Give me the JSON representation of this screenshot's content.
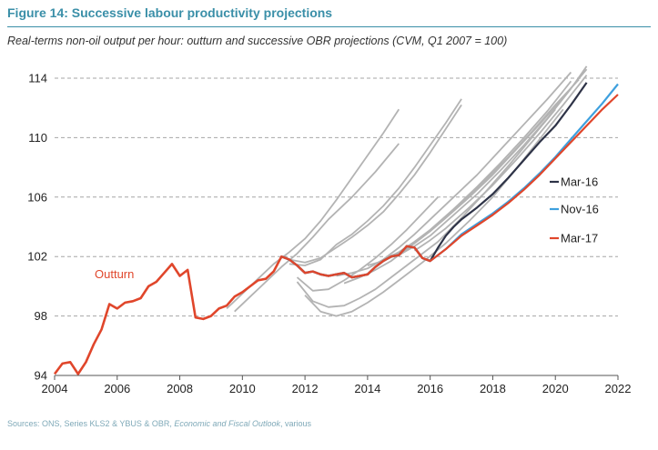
{
  "figure": {
    "title": "Figure 14:  Successive labour productivity projections",
    "subtitle": "Real-terms non-oil output per hour: outturn and successive OBR projections (CVM, Q1 2007 = 100)",
    "source_prefix": "Sources: ",
    "source_text": "ONS, Series KLS2 & YBUS & OBR, ",
    "source_italic": "Economic and Fiscal Outlook",
    "source_suffix": ", various"
  },
  "chart_data": {
    "type": "line",
    "title": "Successive labour productivity projections",
    "xlabel": "",
    "ylabel": "",
    "xlim": [
      2004,
      2022
    ],
    "ylim": [
      94,
      115
    ],
    "xticks": [
      "2004",
      "2006",
      "2008",
      "2010",
      "2012",
      "2014",
      "2016",
      "2018",
      "2020",
      "2022"
    ],
    "yticks": [
      "94",
      "98",
      "102",
      "106",
      "110",
      "114"
    ],
    "grid": "horizontal-dashed",
    "legend_position": "right",
    "colors": {
      "outturn": "#e0462b",
      "mar16": "#2e3347",
      "nov16": "#3ea0de",
      "mar17": "#e0462b",
      "past": "#b3b3b3"
    },
    "outturn_label": "Outturn",
    "outturn": {
      "x": [
        2004.0,
        2004.25,
        2004.5,
        2004.75,
        2005.0,
        2005.25,
        2005.5,
        2005.75,
        2006.0,
        2006.25,
        2006.5,
        2006.75,
        2007.0,
        2007.25,
        2007.5,
        2007.75,
        2008.0,
        2008.25,
        2008.5,
        2008.75,
        2009.0,
        2009.25,
        2009.5,
        2009.75,
        2010.0,
        2010.25,
        2010.5,
        2010.75,
        2011.0,
        2011.25,
        2011.5,
        2011.75,
        2012.0,
        2012.25,
        2012.5,
        2012.75,
        2013.0,
        2013.25,
        2013.5,
        2013.75,
        2014.0,
        2014.25,
        2014.5,
        2014.75,
        2015.0,
        2015.25,
        2015.5,
        2015.75,
        2016.0
      ],
      "y": [
        94.1,
        94.8,
        94.9,
        94.1,
        94.9,
        96.1,
        97.1,
        98.8,
        98.5,
        98.9,
        99.0,
        99.2,
        100.0,
        100.3,
        100.9,
        101.5,
        100.7,
        101.1,
        97.9,
        97.8,
        98.0,
        98.5,
        98.7,
        99.3,
        99.6,
        100.0,
        100.4,
        100.5,
        101.0,
        102.0,
        101.8,
        101.4,
        100.9,
        101.0,
        100.8,
        100.7,
        100.8,
        100.9,
        100.6,
        100.7,
        100.8,
        101.3,
        101.7,
        102.0,
        102.1,
        102.7,
        102.6,
        101.9,
        101.7
      ]
    },
    "series": [
      {
        "name": "Mar-16",
        "x": [
          2016.0,
          2016.25,
          2016.5,
          2016.75,
          2017.0,
          2017.5,
          2018.0,
          2018.5,
          2019.0,
          2019.5,
          2020.0,
          2020.5,
          2021.0
        ],
        "y": [
          101.6,
          102.6,
          103.4,
          104.0,
          104.5,
          105.3,
          106.2,
          107.3,
          108.5,
          109.7,
          110.8,
          112.2,
          113.7
        ]
      },
      {
        "name": "Nov-16",
        "x": [
          2016.0,
          2016.5,
          2017.0,
          2017.5,
          2018.0,
          2018.5,
          2019.0,
          2019.5,
          2020.0,
          2020.5,
          2021.0,
          2021.5,
          2022.0
        ],
        "y": [
          101.7,
          102.5,
          103.5,
          104.2,
          104.9,
          105.7,
          106.6,
          107.6,
          108.7,
          109.9,
          111.1,
          112.3,
          113.6
        ]
      },
      {
        "name": "Mar-17",
        "x": [
          2016.0,
          2016.5,
          2017.0,
          2017.5,
          2018.0,
          2018.5,
          2019.0,
          2019.5,
          2020.0,
          2020.5,
          2021.0,
          2021.5,
          2022.0
        ],
        "y": [
          101.7,
          102.5,
          103.4,
          104.1,
          104.8,
          105.6,
          106.5,
          107.5,
          108.6,
          109.7,
          110.8,
          111.9,
          112.9
        ]
      }
    ],
    "past_projections": [
      {
        "x": [
          2009.5,
          2010.0,
          2010.5,
          2011.0,
          2011.5,
          2012.0,
          2012.5,
          2013.0,
          2013.5,
          2014.0,
          2014.5,
          2015.0
        ],
        "y": [
          98.5,
          99.5,
          100.5,
          101.5,
          102.3,
          103.2,
          104.4,
          105.8,
          107.3,
          108.8,
          110.3,
          111.9
        ]
      },
      {
        "x": [
          2009.75,
          2010.25,
          2010.75,
          2011.25,
          2011.75,
          2012.25,
          2012.75,
          2013.5,
          2014.25,
          2015.0
        ],
        "y": [
          98.3,
          99.3,
          100.3,
          101.3,
          102.2,
          103.3,
          104.5,
          106.0,
          107.7,
          109.6
        ]
      },
      {
        "x": [
          2011.5,
          2012.0,
          2012.5,
          2013.0,
          2013.5,
          2014.0,
          2014.5,
          2015.0,
          2015.5,
          2016.0,
          2016.5,
          2017.0
        ],
        "y": [
          101.5,
          101.4,
          101.8,
          102.8,
          103.5,
          104.4,
          105.4,
          106.6,
          108.0,
          109.5,
          111.0,
          112.6
        ]
      },
      {
        "x": [
          2011.5,
          2012.0,
          2012.5,
          2013.0,
          2013.5,
          2014.0,
          2014.5,
          2015.0,
          2015.5,
          2016.0,
          2016.5,
          2017.0
        ],
        "y": [
          101.8,
          101.6,
          101.9,
          102.6,
          103.3,
          104.1,
          105.0,
          106.2,
          107.5,
          109.0,
          110.6,
          112.2
        ]
      },
      {
        "x": [
          2011.75,
          2012.25,
          2012.75,
          2013.25,
          2013.75,
          2014.25,
          2014.75,
          2015.25,
          2015.75,
          2016.25
        ],
        "y": [
          100.6,
          99.7,
          99.8,
          100.4,
          101.1,
          101.9,
          102.8,
          103.8,
          104.9,
          106.0
        ]
      },
      {
        "x": [
          2011.75,
          2012.25,
          2012.75,
          2013.25,
          2013.75,
          2014.25,
          2014.75,
          2015.5,
          2016.25,
          2017.0,
          2017.75,
          2018.5,
          2019.25,
          2020.0
        ],
        "y": [
          100.3,
          99.0,
          98.6,
          98.7,
          99.2,
          99.8,
          100.6,
          101.8,
          103.0,
          104.6,
          106.3,
          108.1,
          110.0,
          111.9
        ]
      },
      {
        "x": [
          2012.0,
          2012.5,
          2013.0,
          2013.5,
          2014.0,
          2014.5,
          2015.0,
          2015.75,
          2016.5,
          2017.25,
          2018.0,
          2018.75,
          2019.5,
          2020.25
        ],
        "y": [
          99.4,
          98.3,
          98.0,
          98.3,
          98.9,
          99.6,
          100.4,
          101.6,
          102.9,
          104.4,
          106.0,
          107.9,
          109.9,
          111.9
        ]
      },
      {
        "x": [
          2013.0,
          2013.5,
          2014.0,
          2014.5,
          2015.0,
          2015.5,
          2016.0,
          2016.75,
          2017.5,
          2018.25,
          2019.0,
          2019.75,
          2020.5
        ],
        "y": [
          100.7,
          100.9,
          101.2,
          101.8,
          102.6,
          103.5,
          104.5,
          106.0,
          107.5,
          109.2,
          110.9,
          112.6,
          114.4
        ]
      },
      {
        "x": [
          2013.25,
          2013.75,
          2014.25,
          2014.75,
          2015.25,
          2015.75,
          2016.25,
          2017.0,
          2017.75,
          2018.5,
          2019.25,
          2020.0,
          2020.75
        ],
        "y": [
          100.2,
          100.6,
          101.1,
          101.7,
          102.5,
          103.3,
          104.2,
          105.6,
          107.1,
          108.7,
          110.4,
          112.2,
          113.9
        ]
      },
      {
        "x": [
          2014.0,
          2014.5,
          2015.0,
          2015.5,
          2016.0,
          2016.5,
          2017.25,
          2018.0,
          2018.75,
          2019.5,
          2020.25,
          2021.0
        ],
        "y": [
          101.4,
          101.7,
          102.2,
          102.9,
          103.7,
          104.6,
          106.0,
          107.5,
          109.2,
          110.9,
          112.7,
          114.6
        ]
      },
      {
        "x": [
          2014.5,
          2015.0,
          2015.5,
          2016.0,
          2016.75,
          2017.5,
          2018.25,
          2019.0,
          2019.75,
          2020.5
        ],
        "y": [
          101.8,
          102.3,
          103.0,
          103.8,
          105.2,
          106.7,
          108.3,
          110.0,
          111.8,
          113.8
        ]
      },
      {
        "x": [
          2015.0,
          2015.5,
          2016.0,
          2016.75,
          2017.5,
          2018.25,
          2019.0,
          2019.75,
          2020.5,
          2021.0
        ],
        "y": [
          102.1,
          102.7,
          103.4,
          104.8,
          106.2,
          107.8,
          109.5,
          111.3,
          113.3,
          114.8
        ]
      },
      {
        "x": [
          2015.5,
          2016.0,
          2016.5,
          2017.25,
          2018.0,
          2018.75,
          2019.5,
          2020.25,
          2021.0
        ],
        "y": [
          102.4,
          103.1,
          103.9,
          105.3,
          106.8,
          108.5,
          110.3,
          112.2,
          114.2
        ]
      }
    ]
  }
}
